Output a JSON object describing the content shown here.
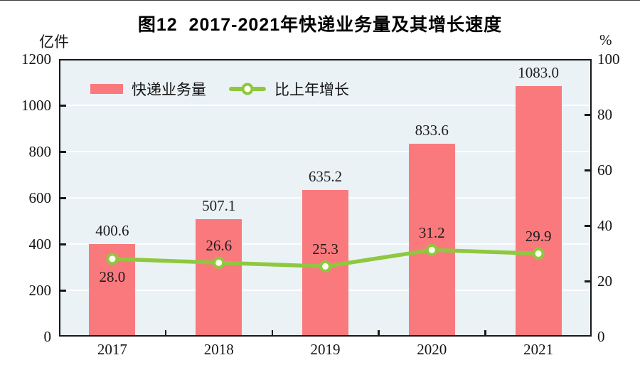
{
  "title": "图12  2017-2021年快递业务量及其增长速度",
  "left_axis": {
    "unit": "亿件",
    "ticks": [
      "1200",
      "1000",
      "800",
      "600",
      "400",
      "200",
      "0"
    ]
  },
  "right_axis": {
    "unit": "%",
    "ticks": [
      "100",
      "80",
      "60",
      "40",
      "20",
      "0"
    ]
  },
  "legend": [
    {
      "label": "快递业务量",
      "marker": "bar-swatch"
    },
    {
      "label": "比上年增长",
      "marker": "line-with-circle-marker"
    }
  ],
  "chart_data": {
    "type": "bar",
    "subtype": "bar+line-dual-axis",
    "title": "图12 2017-2021年快递业务量及其增长速度",
    "categories": [
      "2017",
      "2018",
      "2019",
      "2020",
      "2021"
    ],
    "series": [
      {
        "name": "快递业务量",
        "type": "bar",
        "axis": "left",
        "unit": "亿件",
        "values": [
          400.6,
          507.1,
          635.2,
          833.6,
          1083.0
        ]
      },
      {
        "name": "比上年增长",
        "type": "line",
        "axis": "right",
        "unit": "%",
        "values": [
          28.0,
          26.6,
          25.3,
          31.2,
          29.9
        ],
        "label_placement": [
          "below",
          "above",
          "above",
          "above",
          "above"
        ]
      }
    ],
    "left_ylim": [
      0,
      1200
    ],
    "right_ylim": [
      0,
      100
    ],
    "left_tick_step": 200,
    "right_tick_step": 20,
    "grid": true,
    "legend_position": "top-left-inside"
  },
  "colors": {
    "bar": "#fa797d",
    "line": "#8fc83e",
    "marker_fill": "#fdfff2",
    "plot_bg": "#eaf2f6",
    "grid": "#fdfefe",
    "axis": "#181818",
    "text": "#141414"
  }
}
